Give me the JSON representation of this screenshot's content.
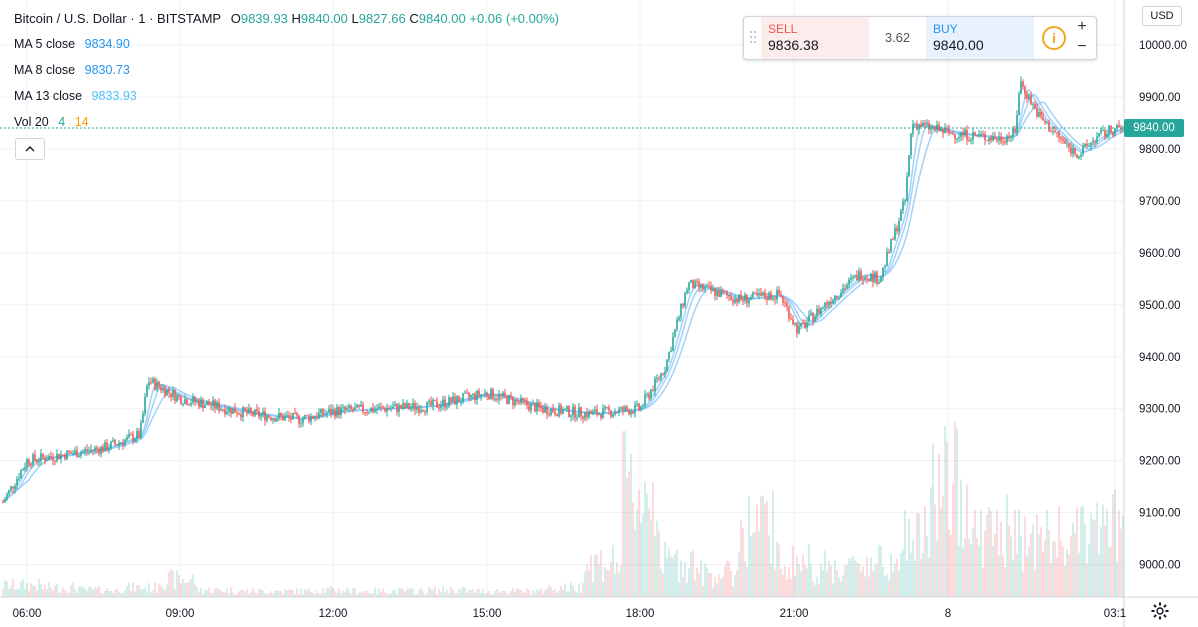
{
  "header": {
    "symbol": "Bitcoin / U.S. Dollar · 1 · BITSTAMP",
    "open_label": "O",
    "open": "9839.93",
    "high_label": "H",
    "high": "9840.00",
    "low_label": "L",
    "low": "9827.66",
    "close_label": "C",
    "close": "9840.00",
    "change": "+0.06 (+0.00%)"
  },
  "indicators": [
    {
      "label": "MA 5 close",
      "value": "9834.90"
    },
    {
      "label": "MA 8 close",
      "value": "9830.73"
    },
    {
      "label": "MA 13 close",
      "value": "9833.93"
    }
  ],
  "volume": {
    "label": "Vol 20",
    "value_a": "4",
    "value_b": "14"
  },
  "trade": {
    "sell_label": "SELL",
    "sell_price": "9836.38",
    "spread": "3.62",
    "buy_label": "BUY",
    "buy_price": "9840.00",
    "zoom_in": "+",
    "zoom_out": "−"
  },
  "currency": "USD",
  "last_price": "9840.00",
  "colors": {
    "up": "#26a69a",
    "down": "#ef5350",
    "ma": "#90caf9",
    "last_line": "#26a69a"
  },
  "chart_data": {
    "type": "candlestick",
    "y_ticks": [
      "10000.00",
      "9900.00",
      "9800.00",
      "9700.00",
      "9600.00",
      "9500.00",
      "9400.00",
      "9300.00",
      "9200.00",
      "9100.00",
      "9000.00"
    ],
    "x_ticks": [
      "06:00",
      "09:00",
      "12:00",
      "15:00",
      "18:00",
      "21:00",
      "8",
      "03:1"
    ],
    "ylim": [
      8950,
      10060
    ],
    "series": [
      {
        "name": "MA 5 close"
      },
      {
        "name": "MA 8 close"
      },
      {
        "name": "MA 13 close"
      }
    ],
    "x": [
      "05:00",
      "06:00",
      "07:00",
      "08:00",
      "08:15",
      "09:00",
      "10:00",
      "11:00",
      "12:00",
      "13:00",
      "14:00",
      "15:00",
      "16:00",
      "17:00",
      "18:00",
      "18:30",
      "19:00",
      "19:45",
      "20:30",
      "21:00",
      "21:30",
      "22:00",
      "22:45",
      "23:30",
      "00:00",
      "01:00",
      "02:00",
      "02:30",
      "03:00"
    ],
    "close": [
      9120,
      9200,
      9225,
      9250,
      9355,
      9320,
      9290,
      9280,
      9295,
      9300,
      9305,
      9330,
      9300,
      9290,
      9300,
      9380,
      9540,
      9510,
      9520,
      9450,
      9510,
      9560,
      9550,
      9700,
      9850,
      9830,
      9820,
      9830,
      9930
    ],
    "close_tail": [
      9860,
      9800,
      9790,
      9820,
      9835,
      9840
    ],
    "volume_relative": [
      0.1,
      0.08,
      0.06,
      0.08,
      0.15,
      0.06,
      0.05,
      0.05,
      0.06,
      0.05,
      0.05,
      0.06,
      0.05,
      0.05,
      0.08,
      0.3,
      0.9,
      0.3,
      0.2,
      0.6,
      0.3,
      0.25,
      0.3,
      0.5,
      0.95,
      0.55,
      0.5,
      0.5,
      0.6
    ]
  }
}
